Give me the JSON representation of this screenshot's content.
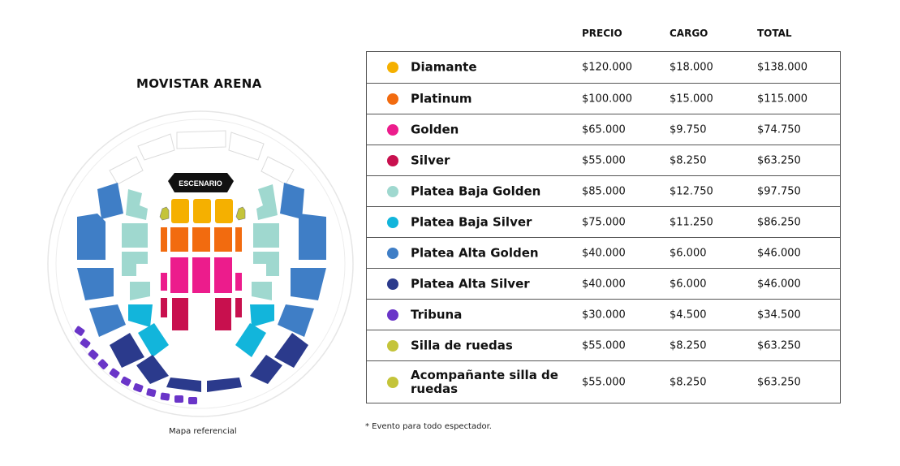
{
  "venue": {
    "title": "MOVISTAR ARENA",
    "stage_label": "ESCENARIO",
    "map_caption": "Mapa referencial"
  },
  "table": {
    "headers": {
      "precio": "PRECIO",
      "cargo": "CARGO",
      "total": "TOTAL"
    },
    "rows": [
      {
        "name": "Diamante",
        "color": "#F5B000",
        "precio": "$120.000",
        "cargo": "$18.000",
        "total": "$138.000"
      },
      {
        "name": "Platinum",
        "color": "#F26B0F",
        "precio": "$100.000",
        "cargo": "$15.000",
        "total": "$115.000"
      },
      {
        "name": "Golden",
        "color": "#EC1C8C",
        "precio": "$65.000",
        "cargo": "$9.750",
        "total": "$74.750"
      },
      {
        "name": "Silver",
        "color": "#C8104E",
        "precio": "$55.000",
        "cargo": "$8.250",
        "total": "$63.250"
      },
      {
        "name": "Platea Baja Golden",
        "color": "#9FD8CF",
        "precio": "$85.000",
        "cargo": "$12.750",
        "total": "$97.750"
      },
      {
        "name": "Platea Baja Silver",
        "color": "#12B5DB",
        "precio": "$75.000",
        "cargo": "$11.250",
        "total": "$86.250"
      },
      {
        "name": "Platea Alta Golden",
        "color": "#3F7EC6",
        "precio": "$40.000",
        "cargo": "$6.000",
        "total": "$46.000"
      },
      {
        "name": "Platea Alta Silver",
        "color": "#2B3A8C",
        "precio": "$40.000",
        "cargo": "$6.000",
        "total": "$46.000"
      },
      {
        "name": "Tribuna",
        "color": "#6A35C8",
        "precio": "$30.000",
        "cargo": "$4.500",
        "total": "$34.500"
      },
      {
        "name": "Silla de ruedas",
        "color": "#C4C43A",
        "precio": "$55.000",
        "cargo": "$8.250",
        "total": "$63.250"
      },
      {
        "name": "Acompañante silla de ruedas",
        "color": "#C4C43A",
        "precio": "$55.000",
        "cargo": "$8.250",
        "total": "$63.250"
      }
    ]
  },
  "footnote": "*  Evento para todo espectador."
}
